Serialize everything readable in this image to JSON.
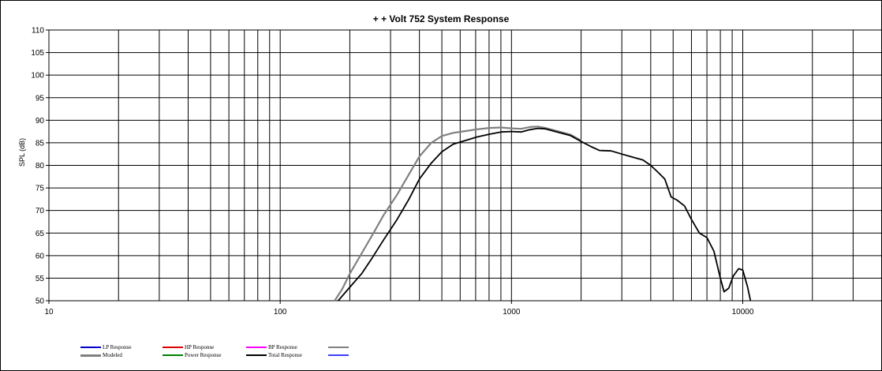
{
  "chart_data": {
    "type": "line",
    "title": "+ + Volt 752  System Response",
    "xlabel": "",
    "ylabel": "SPL (dB)",
    "x_scale": "log",
    "xlim": [
      10,
      40000
    ],
    "ylim": [
      50,
      110
    ],
    "y_ticks": [
      50,
      55,
      60,
      65,
      70,
      75,
      80,
      85,
      90,
      95,
      100,
      105,
      110
    ],
    "x_tick_labels": [
      10,
      100,
      1000,
      10000
    ],
    "grid": true,
    "legend_position": "bottom",
    "legend": [
      {
        "label": "LP Response",
        "color": "#0000cc"
      },
      {
        "label": "HP Response",
        "color": "#e00000"
      },
      {
        "label": "BP Response",
        "color": "#ff00ff"
      },
      {
        "label": "",
        "color": "#808080"
      },
      {
        "label": "Modeled",
        "color": "#808080"
      },
      {
        "label": "Power Response",
        "color": "#008000"
      },
      {
        "label": "Total Response",
        "color": "#000000"
      },
      {
        "label": "",
        "color": "#4040ff"
      }
    ],
    "series": [
      {
        "name": "Modeled",
        "color": "#808080",
        "x": [
          172,
          185,
          200,
          225,
          250,
          280,
          320,
          360,
          400,
          450,
          500,
          560,
          630,
          710,
          800,
          900,
          1000,
          1100,
          1200,
          1300,
          1400,
          1600,
          1800,
          2000
        ],
        "y": [
          50,
          52.5,
          56,
          60.5,
          64.5,
          69,
          73.5,
          78,
          82,
          85,
          86.5,
          87.2,
          87.6,
          88,
          88.3,
          88.4,
          88.2,
          88.1,
          88.5,
          88.6,
          88.3,
          87.5,
          86.8,
          85.5
        ]
      },
      {
        "name": "Total Response",
        "color": "#000000",
        "x": [
          178,
          200,
          225,
          250,
          280,
          320,
          360,
          400,
          450,
          500,
          560,
          630,
          710,
          800,
          900,
          1000,
          1100,
          1200,
          1300,
          1400,
          1600,
          1800,
          2000,
          2200,
          2400,
          2700,
          3000,
          3300,
          3700,
          4000,
          4300,
          4600,
          4900,
          5200,
          5600,
          6000,
          6500,
          7000,
          7500,
          8000,
          8300,
          8700,
          9100,
          9600,
          10000,
          10500,
          10800
        ],
        "y": [
          50,
          53,
          56,
          59.5,
          63.5,
          68,
          72.5,
          77,
          80.5,
          83,
          84.7,
          85.5,
          86.3,
          86.9,
          87.4,
          87.5,
          87.4,
          87.9,
          88.2,
          88.1,
          87.3,
          86.6,
          85.3,
          84.2,
          83.3,
          83.2,
          82.5,
          81.9,
          81.2,
          80,
          78.5,
          77,
          73,
          72.3,
          71,
          68,
          65,
          64,
          61,
          55,
          52,
          52.8,
          55.5,
          57.1,
          56.8,
          53,
          50
        ]
      }
    ]
  }
}
